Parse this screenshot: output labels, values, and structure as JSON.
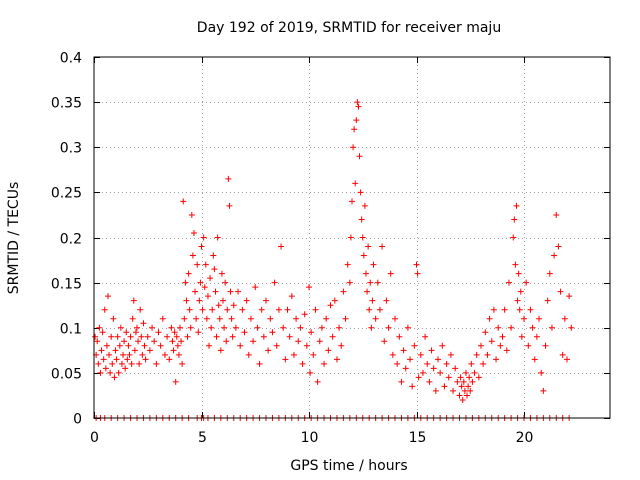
{
  "chart_data": {
    "type": "scatter",
    "title": "Day 192 of 2019, SRMTID for receiver maju",
    "xlabel": "GPS time / hours",
    "ylabel": "SRMTID / TECUs",
    "xlim": [
      0,
      24
    ],
    "ylim": [
      0,
      0.4
    ],
    "xticks": [
      0,
      5,
      10,
      15,
      20
    ],
    "xtick_labels": [
      "0",
      "5",
      "10",
      "15",
      "20"
    ],
    "yticks": [
      0,
      0.05,
      0.1,
      0.15,
      0.2,
      0.25,
      0.3,
      0.35,
      0.4
    ],
    "ytick_labels": [
      "0",
      "0.05",
      "0.1",
      "0.15",
      "0.2",
      "0.25",
      "0.3",
      "0.35",
      "0.4"
    ],
    "grid": true,
    "marker": "plus",
    "color": "#ff0000",
    "series": [
      {
        "name": "SRMTID",
        "points": [
          [
            0.05,
            0.09
          ],
          [
            0.1,
            0.07
          ],
          [
            0.15,
            0.085
          ],
          [
            0.2,
            0.06
          ],
          [
            0.25,
            0.1
          ],
          [
            0.3,
            0.05
          ],
          [
            0.35,
            0.075
          ],
          [
            0.4,
            0.095
          ],
          [
            0.45,
            0.065
          ],
          [
            0.5,
            0.12
          ],
          [
            0.55,
            0.055
          ],
          [
            0.6,
            0.08
          ],
          [
            0.65,
            0.135
          ],
          [
            0.7,
            0.07
          ],
          [
            0.75,
            0.05
          ],
          [
            0.8,
            0.09
          ],
          [
            0.85,
            0.06
          ],
          [
            0.9,
            0.11
          ],
          [
            0.95,
            0.045
          ],
          [
            1.0,
            0.075
          ],
          [
            1.05,
            0.065
          ],
          [
            1.1,
            0.09
          ],
          [
            1.15,
            0.05
          ],
          [
            1.2,
            0.08
          ],
          [
            1.25,
            0.1
          ],
          [
            1.3,
            0.06
          ],
          [
            1.35,
            0.07
          ],
          [
            1.4,
            0.085
          ],
          [
            1.45,
            0.055
          ],
          [
            1.5,
            0.095
          ],
          [
            1.55,
            0.065
          ],
          [
            1.6,
            0.08
          ],
          [
            1.65,
            0.07
          ],
          [
            1.7,
            0.09
          ],
          [
            1.75,
            0.06
          ],
          [
            1.8,
            0.11
          ],
          [
            1.85,
            0.13
          ],
          [
            1.9,
            0.075
          ],
          [
            1.95,
            0.095
          ],
          [
            2.0,
            0.1
          ],
          [
            2.05,
            0.085
          ],
          [
            2.1,
            0.06
          ],
          [
            2.15,
            0.12
          ],
          [
            2.2,
            0.09
          ],
          [
            2.25,
            0.07
          ],
          [
            2.3,
            0.105
          ],
          [
            2.35,
            0.08
          ],
          [
            2.4,
            0.065
          ],
          [
            2.5,
            0.09
          ],
          [
            2.6,
            0.075
          ],
          [
            2.7,
            0.1
          ],
          [
            2.8,
            0.085
          ],
          [
            2.9,
            0.06
          ],
          [
            3.0,
            0.095
          ],
          [
            3.1,
            0.08
          ],
          [
            3.2,
            0.11
          ],
          [
            3.3,
            0.07
          ],
          [
            3.4,
            0.09
          ],
          [
            3.5,
            0.065
          ],
          [
            3.6,
            0.1
          ],
          [
            3.65,
            0.085
          ],
          [
            3.7,
            0.075
          ],
          [
            3.75,
            0.095
          ],
          [
            3.8,
            0.04
          ],
          [
            3.85,
            0.09
          ],
          [
            3.9,
            0.08
          ],
          [
            3.95,
            0.07
          ],
          [
            4.0,
            0.1
          ],
          [
            4.05,
            0.085
          ],
          [
            4.1,
            0.06
          ],
          [
            4.15,
            0.24
          ],
          [
            4.2,
            0.11
          ],
          [
            4.25,
            0.15
          ],
          [
            4.3,
            0.13
          ],
          [
            4.35,
            0.09
          ],
          [
            4.4,
            0.16
          ],
          [
            4.45,
            0.12
          ],
          [
            4.5,
            0.1
          ],
          [
            4.55,
            0.225
          ],
          [
            4.6,
            0.18
          ],
          [
            4.65,
            0.205
          ],
          [
            4.7,
            0.14
          ],
          [
            4.75,
            0.11
          ],
          [
            4.8,
            0.17
          ],
          [
            4.85,
            0.095
          ],
          [
            4.9,
            0.13
          ],
          [
            4.95,
            0.15
          ],
          [
            5.0,
            0.19
          ],
          [
            5.05,
            0.12
          ],
          [
            5.1,
            0.2
          ],
          [
            5.15,
            0.145
          ],
          [
            5.2,
            0.17
          ],
          [
            5.25,
            0.11
          ],
          [
            5.3,
            0.135
          ],
          [
            5.35,
            0.08
          ],
          [
            5.4,
            0.155
          ],
          [
            5.45,
            0.1
          ],
          [
            5.5,
            0.12
          ],
          [
            5.55,
            0.18
          ],
          [
            5.6,
            0.165
          ],
          [
            5.65,
            0.14
          ],
          [
            5.7,
            0.09
          ],
          [
            5.75,
            0.2
          ],
          [
            5.8,
            0.125
          ],
          [
            5.85,
            0.11
          ],
          [
            5.9,
            0.075
          ],
          [
            5.95,
            0.16
          ],
          [
            6.0,
            0.13
          ],
          [
            6.05,
            0.1
          ],
          [
            6.1,
            0.15
          ],
          [
            6.15,
            0.085
          ],
          [
            6.2,
            0.12
          ],
          [
            6.25,
            0.265
          ],
          [
            6.3,
            0.235
          ],
          [
            6.35,
            0.14
          ],
          [
            6.4,
            0.11
          ],
          [
            6.45,
            0.09
          ],
          [
            6.5,
            0.125
          ],
          [
            6.6,
            0.1
          ],
          [
            6.7,
            0.14
          ],
          [
            6.8,
            0.08
          ],
          [
            6.9,
            0.12
          ],
          [
            7.0,
            0.095
          ],
          [
            7.1,
            0.13
          ],
          [
            7.2,
            0.07
          ],
          [
            7.3,
            0.11
          ],
          [
            7.4,
            0.085
          ],
          [
            7.5,
            0.145
          ],
          [
            7.6,
            0.1
          ],
          [
            7.7,
            0.06
          ],
          [
            7.8,
            0.12
          ],
          [
            7.9,
            0.09
          ],
          [
            8.0,
            0.13
          ],
          [
            8.1,
            0.075
          ],
          [
            8.2,
            0.11
          ],
          [
            8.3,
            0.095
          ],
          [
            8.4,
            0.15
          ],
          [
            8.5,
            0.08
          ],
          [
            8.6,
            0.12
          ],
          [
            8.7,
            0.19
          ],
          [
            8.8,
            0.1
          ],
          [
            8.9,
            0.065
          ],
          [
            9.0,
            0.12
          ],
          [
            9.1,
            0.09
          ],
          [
            9.2,
            0.135
          ],
          [
            9.3,
            0.07
          ],
          [
            9.4,
            0.11
          ],
          [
            9.5,
            0.085
          ],
          [
            9.6,
            0.1
          ],
          [
            9.7,
            0.06
          ],
          [
            9.8,
            0.115
          ],
          [
            9.9,
            0.08
          ],
          [
            10.0,
            0.145
          ],
          [
            10.05,
            0.05
          ],
          [
            10.1,
            0.095
          ],
          [
            10.2,
            0.07
          ],
          [
            10.3,
            0.12
          ],
          [
            10.4,
            0.04
          ],
          [
            10.5,
            0.085
          ],
          [
            10.6,
            0.1
          ],
          [
            10.7,
            0.06
          ],
          [
            10.8,
            0.11
          ],
          [
            10.9,
            0.075
          ],
          [
            11.0,
            0.125
          ],
          [
            11.1,
            0.09
          ],
          [
            11.2,
            0.13
          ],
          [
            11.3,
            0.065
          ],
          [
            11.4,
            0.1
          ],
          [
            11.5,
            0.08
          ],
          [
            11.6,
            0.14
          ],
          [
            11.7,
            0.11
          ],
          [
            11.8,
            0.17
          ],
          [
            11.9,
            0.15
          ],
          [
            11.95,
            0.2
          ],
          [
            12.0,
            0.24
          ],
          [
            12.05,
            0.3
          ],
          [
            12.1,
            0.32
          ],
          [
            12.15,
            0.26
          ],
          [
            12.2,
            0.33
          ],
          [
            12.25,
            0.35
          ],
          [
            12.3,
            0.345
          ],
          [
            12.35,
            0.29
          ],
          [
            12.4,
            0.25
          ],
          [
            12.45,
            0.22
          ],
          [
            12.5,
            0.2
          ],
          [
            12.55,
            0.18
          ],
          [
            12.6,
            0.235
          ],
          [
            12.65,
            0.16
          ],
          [
            12.7,
            0.14
          ],
          [
            12.75,
            0.19
          ],
          [
            12.8,
            0.12
          ],
          [
            12.85,
            0.15
          ],
          [
            12.9,
            0.1
          ],
          [
            12.95,
            0.13
          ],
          [
            13.0,
            0.17
          ],
          [
            13.1,
            0.11
          ],
          [
            13.2,
            0.15
          ],
          [
            13.3,
            0.12
          ],
          [
            13.4,
            0.19
          ],
          [
            13.5,
            0.085
          ],
          [
            13.6,
            0.13
          ],
          [
            13.7,
            0.1
          ],
          [
            13.8,
            0.16
          ],
          [
            13.9,
            0.07
          ],
          [
            14.0,
            0.11
          ],
          [
            14.1,
            0.06
          ],
          [
            14.2,
            0.09
          ],
          [
            14.3,
            0.04
          ],
          [
            14.4,
            0.075
          ],
          [
            14.5,
            0.055
          ],
          [
            14.6,
            0.1
          ],
          [
            14.7,
            0.065
          ],
          [
            14.8,
            0.035
          ],
          [
            14.9,
            0.08
          ],
          [
            15.0,
            0.17
          ],
          [
            15.05,
            0.16
          ],
          [
            15.1,
            0.045
          ],
          [
            15.2,
            0.07
          ],
          [
            15.3,
            0.05
          ],
          [
            15.4,
            0.09
          ],
          [
            15.5,
            0.06
          ],
          [
            15.6,
            0.04
          ],
          [
            15.7,
            0.075
          ],
          [
            15.8,
            0.055
          ],
          [
            15.9,
            0.03
          ],
          [
            16.0,
            0.065
          ],
          [
            16.1,
            0.05
          ],
          [
            16.2,
            0.08
          ],
          [
            16.3,
            0.035
          ],
          [
            16.4,
            0.06
          ],
          [
            16.5,
            0.045
          ],
          [
            16.6,
            0.07
          ],
          [
            16.7,
            0.03
          ],
          [
            16.8,
            0.055
          ],
          [
            16.9,
            0.04
          ],
          [
            17.0,
            0.025
          ],
          [
            17.05,
            0.045
          ],
          [
            17.1,
            0.035
          ],
          [
            17.15,
            0.02
          ],
          [
            17.2,
            0.04
          ],
          [
            17.25,
            0.03
          ],
          [
            17.3,
            0.05
          ],
          [
            17.35,
            0.025
          ],
          [
            17.4,
            0.035
          ],
          [
            17.45,
            0.045
          ],
          [
            17.5,
            0.03
          ],
          [
            17.55,
            0.06
          ],
          [
            17.6,
            0.04
          ],
          [
            17.7,
            0.05
          ],
          [
            17.8,
            0.07
          ],
          [
            17.9,
            0.045
          ],
          [
            18.0,
            0.08
          ],
          [
            18.1,
            0.06
          ],
          [
            18.2,
            0.095
          ],
          [
            18.3,
            0.07
          ],
          [
            18.4,
            0.11
          ],
          [
            18.5,
            0.085
          ],
          [
            18.6,
            0.12
          ],
          [
            18.7,
            0.065
          ],
          [
            18.8,
            0.1
          ],
          [
            18.9,
            0.08
          ],
          [
            19.0,
            0.09
          ],
          [
            19.1,
            0.12
          ],
          [
            19.2,
            0.075
          ],
          [
            19.3,
            0.15
          ],
          [
            19.4,
            0.1
          ],
          [
            19.5,
            0.2
          ],
          [
            19.55,
            0.22
          ],
          [
            19.6,
            0.17
          ],
          [
            19.65,
            0.235
          ],
          [
            19.7,
            0.13
          ],
          [
            19.75,
            0.16
          ],
          [
            19.8,
            0.12
          ],
          [
            19.85,
            0.14
          ],
          [
            19.9,
            0.09
          ],
          [
            20.0,
            0.11
          ],
          [
            20.1,
            0.15
          ],
          [
            20.2,
            0.08
          ],
          [
            20.3,
            0.12
          ],
          [
            20.4,
            0.1
          ],
          [
            20.5,
            0.065
          ],
          [
            20.6,
            0.09
          ],
          [
            20.7,
            0.11
          ],
          [
            20.8,
            0.05
          ],
          [
            20.9,
            0.03
          ],
          [
            21.0,
            0.08
          ],
          [
            21.1,
            0.13
          ],
          [
            21.2,
            0.16
          ],
          [
            21.3,
            0.1
          ],
          [
            21.4,
            0.18
          ],
          [
            21.5,
            0.225
          ],
          [
            21.6,
            0.19
          ],
          [
            21.7,
            0.14
          ],
          [
            21.8,
            0.07
          ],
          [
            21.9,
            0.11
          ],
          [
            22.0,
            0.065
          ],
          [
            22.1,
            0.135
          ],
          [
            22.2,
            0.1
          ]
        ],
        "zero_rug_x": [
          0.1,
          0.3,
          0.5,
          0.8,
          1.1,
          1.4,
          1.7,
          2.0,
          2.3,
          2.6,
          2.9,
          3.2,
          3.5,
          3.8,
          4.1,
          4.4,
          4.8,
          5.0,
          5.1,
          5.3,
          5.6,
          5.9,
          6.2,
          6.5,
          6.8,
          7.1,
          7.4,
          7.7,
          8.0,
          8.3,
          8.6,
          8.9,
          9.2,
          9.5,
          9.8,
          10.1,
          10.4,
          10.7,
          11.0,
          11.3,
          11.6,
          11.9,
          12.2,
          12.5,
          12.8,
          13.1,
          13.4,
          13.7,
          14.0,
          14.3,
          14.6,
          14.9,
          15.2,
          15.5,
          15.8,
          16.1,
          16.4,
          16.7,
          17.0,
          17.3,
          17.6,
          17.9,
          18.2,
          18.5,
          18.8,
          19.1,
          19.4,
          19.7,
          20.0,
          20.3,
          20.6,
          20.9,
          21.2,
          21.5,
          21.8,
          22.1
        ]
      }
    ]
  }
}
